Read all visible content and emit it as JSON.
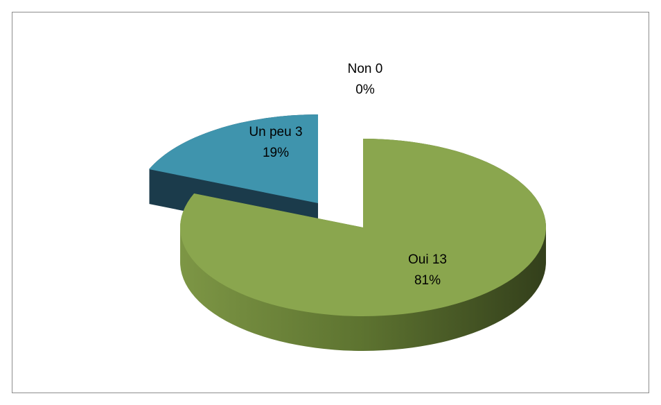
{
  "chart_data": {
    "type": "pie3d",
    "categories": [
      "Oui",
      "Un peu",
      "Non"
    ],
    "values": [
      13,
      3,
      0
    ],
    "percent_labels": [
      "81%",
      "19%",
      "0%"
    ],
    "colors": [
      "#8aa64e",
      "#3f94ad",
      "#c0504d"
    ],
    "side_colors": [
      "#4f6128",
      "#1b3b4b",
      "#7a2e2c"
    ]
  }
}
